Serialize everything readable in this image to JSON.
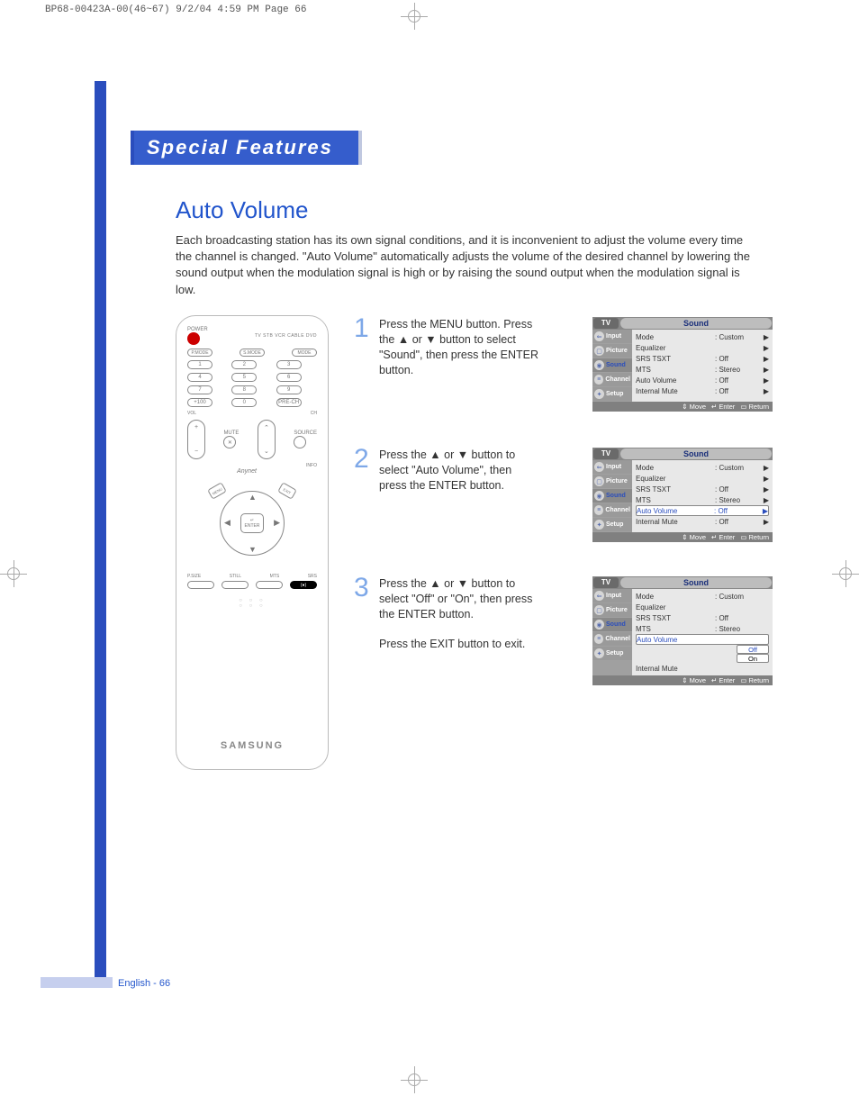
{
  "header_strip": "BP68-00423A-00(46~67)  9/2/04  4:59 PM  Page 66",
  "section_title": "Special Features",
  "page_title": "Auto Volume",
  "intro_text": "Each broadcasting station has its own signal conditions, and it is inconvenient to adjust the volume every time the channel is changed. \"Auto Volume\" automatically adjusts the volume of the desired channel by lowering the sound output when the modulation signal is high or by raising the sound output when the modulation signal is low.",
  "colors": {
    "accent_blue": "#2a4dbd",
    "title_blue": "#355dcc",
    "text_blue": "#2255cc",
    "step_num_blue": "#7ea8e8",
    "osd_gray": "#b8b8b8",
    "osd_side_gray": "#a0a0a0",
    "osd_main_gray": "#e8e8e8",
    "osd_footer_gray": "#808080"
  },
  "steps": [
    {
      "num": "1",
      "text": "Press the MENU button.\nPress the ▲ or ▼ button to select \"Sound\", then press the ENTER button.",
      "extra": ""
    },
    {
      "num": "2",
      "text": "Press the ▲ or ▼ button to select \"Auto Volume\", then press the ENTER button.",
      "extra": ""
    },
    {
      "num": "3",
      "text": "Press the ▲ or ▼ button to select \"Off\" or \"On\", then press the ENTER button.",
      "extra": "Press the EXIT button to exit."
    }
  ],
  "osd": {
    "tv_label": "TV",
    "tab_label": "Sound",
    "sidebar": [
      {
        "icon": "⇐",
        "label": "Input"
      },
      {
        "icon": "▢",
        "label": "Picture"
      },
      {
        "icon": "◉",
        "label": "Sound"
      },
      {
        "icon": "≡",
        "label": "Channel"
      },
      {
        "icon": "✦",
        "label": "Setup"
      }
    ],
    "selected_side_index": 2,
    "screens": [
      {
        "rows": [
          {
            "label": "Mode",
            "val": ": Custom",
            "arrow": "▶",
            "hl": false
          },
          {
            "label": "Equalizer",
            "val": "",
            "arrow": "▶",
            "hl": false
          },
          {
            "label": "SRS TSXT",
            "val": ": Off",
            "arrow": "▶",
            "hl": false
          },
          {
            "label": "MTS",
            "val": ": Stereo",
            "arrow": "▶",
            "hl": false
          },
          {
            "label": "Auto Volume",
            "val": ": Off",
            "arrow": "▶",
            "hl": false
          },
          {
            "label": "Internal Mute",
            "val": ": Off",
            "arrow": "▶",
            "hl": false
          }
        ],
        "submenu": null
      },
      {
        "rows": [
          {
            "label": "Mode",
            "val": ": Custom",
            "arrow": "▶",
            "hl": false
          },
          {
            "label": "Equalizer",
            "val": "",
            "arrow": "▶",
            "hl": false
          },
          {
            "label": "SRS TSXT",
            "val": ": Off",
            "arrow": "▶",
            "hl": false
          },
          {
            "label": "MTS",
            "val": ": Stereo",
            "arrow": "▶",
            "hl": false
          },
          {
            "label": "Auto Volume",
            "val": ": Off",
            "arrow": "▶",
            "hl": true
          },
          {
            "label": "Internal Mute",
            "val": ": Off",
            "arrow": "▶",
            "hl": false
          }
        ],
        "submenu": null
      },
      {
        "rows": [
          {
            "label": "Mode",
            "val": ": Custom",
            "arrow": "",
            "hl": false
          },
          {
            "label": "Equalizer",
            "val": "",
            "arrow": "",
            "hl": false
          },
          {
            "label": "SRS TSXT",
            "val": ": Off",
            "arrow": "",
            "hl": false
          },
          {
            "label": "MTS",
            "val": ": Stereo",
            "arrow": "",
            "hl": false
          },
          {
            "label": "Auto Volume",
            "val": "",
            "arrow": "",
            "hl": true
          },
          {
            "label": "Internal Mute",
            "val": "",
            "arrow": "",
            "hl": false
          }
        ],
        "submenu": {
          "options": [
            "Off",
            "On"
          ],
          "selected": 0,
          "align_row": 4
        }
      }
    ],
    "footer": {
      "move": "Move",
      "enter": "Enter",
      "return": "Return",
      "move_icon": "⇕",
      "enter_icon": "↵",
      "return_icon": "▭"
    }
  },
  "remote": {
    "power": "POWER",
    "devices": "TV  STB  VCR  CABLE  DVD",
    "mode_row": [
      "P.MODE",
      "S.MODE",
      "MODE"
    ],
    "numbers": [
      "1",
      "2",
      "3",
      "4",
      "5",
      "6",
      "7",
      "8",
      "9",
      "+100",
      "0",
      "PRE-CH"
    ],
    "vol": "VOL",
    "ch": "CH",
    "mute": "MUTE",
    "source": "SOURCE",
    "logo_script": "Anynet",
    "info": "INFO",
    "diag_tl": "MENU",
    "diag_tr": "EXIT",
    "enter": "ENTER",
    "bottom": [
      "P.SIZE",
      "STILL",
      "MTS",
      "SRS"
    ],
    "brand": "SAMSUNG"
  },
  "page_number": "English - 66"
}
